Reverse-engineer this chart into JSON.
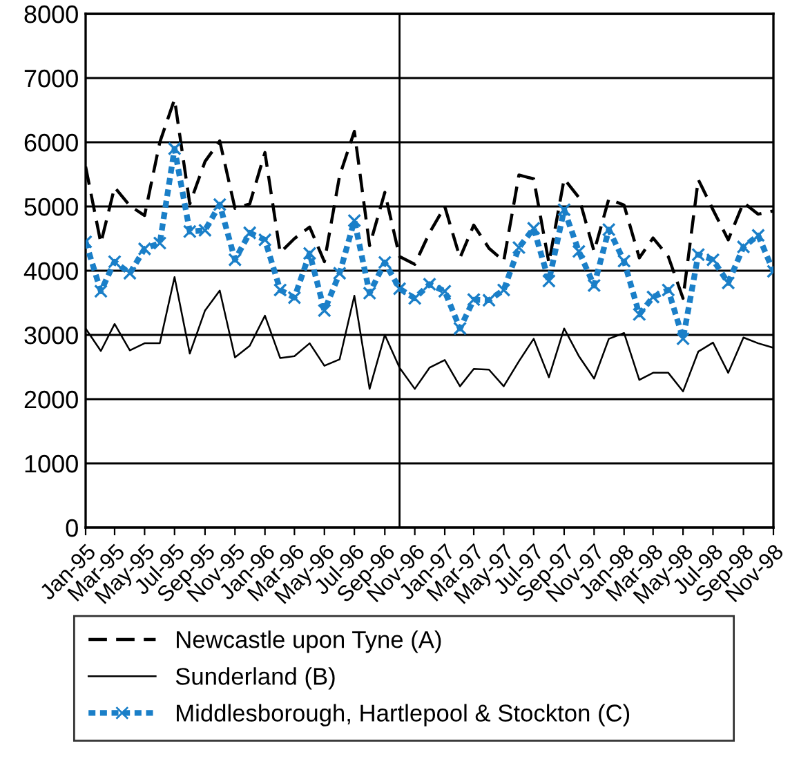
{
  "chart_data": {
    "type": "line",
    "x": [
      "1995-01",
      "1995-02",
      "1995-03",
      "1995-04",
      "1995-05",
      "1995-06",
      "1995-07",
      "1995-08",
      "1995-09",
      "1995-10",
      "1995-11",
      "1995-12",
      "1996-01",
      "1996-02",
      "1996-03",
      "1996-04",
      "1996-05",
      "1996-06",
      "1996-07",
      "1996-08",
      "1996-09",
      "1996-10",
      "1996-11",
      "1996-12",
      "1997-01",
      "1997-02",
      "1997-03",
      "1997-04",
      "1997-05",
      "1997-06",
      "1997-07",
      "1997-08",
      "1997-09",
      "1997-10",
      "1997-11",
      "1997-12",
      "1998-01",
      "1998-02",
      "1998-03",
      "1998-04",
      "1998-05",
      "1998-06",
      "1998-07",
      "1998-08",
      "1998-09",
      "1998-10",
      "1998-11"
    ],
    "series": [
      {
        "name": "Newcastle upon Tyne (A)",
        "color": "#000000",
        "line_style": "dashed",
        "marker": "none",
        "values": [
          5620,
          4430,
          5300,
          5010,
          4860,
          6000,
          6670,
          5040,
          5700,
          6020,
          4970,
          5040,
          5840,
          4280,
          4500,
          4680,
          4140,
          5480,
          6170,
          4390,
          5220,
          4220,
          4100,
          4590,
          5000,
          4200,
          4710,
          4350,
          4150,
          5490,
          5430,
          4120,
          5430,
          5140,
          4300,
          5120,
          5020,
          4200,
          4510,
          4220,
          3570,
          5420,
          4950,
          4480,
          5060,
          4880,
          4930
        ]
      },
      {
        "name": "Sunderland (B)",
        "color": "#000000",
        "line_style": "solid",
        "marker": "none",
        "values": [
          3100,
          2750,
          3170,
          2760,
          2870,
          2870,
          3900,
          2710,
          3380,
          3690,
          2650,
          2830,
          3300,
          2640,
          2670,
          2870,
          2520,
          2620,
          3610,
          2160,
          3000,
          2490,
          2160,
          2490,
          2610,
          2200,
          2470,
          2460,
          2200,
          2590,
          2940,
          2340,
          3100,
          2670,
          2320,
          2940,
          3030,
          2300,
          2410,
          2410,
          2120,
          2740,
          2880,
          2410,
          2960,
          2870,
          2800
        ]
      },
      {
        "name": "Middlesborough, Hartlepool & Stockton (C)",
        "color": "#1a7fc8",
        "line_style": "dotted",
        "marker": "cross",
        "values": [
          4450,
          3680,
          4140,
          3960,
          4340,
          4430,
          5900,
          4610,
          4630,
          5030,
          4170,
          4590,
          4480,
          3700,
          3580,
          4270,
          3380,
          3960,
          4780,
          3650,
          4130,
          3720,
          3570,
          3790,
          3680,
          3100,
          3550,
          3540,
          3700,
          4360,
          4660,
          3840,
          4950,
          4300,
          3770,
          4640,
          4150,
          3320,
          3590,
          3700,
          2940,
          4250,
          4170,
          3810,
          4370,
          4550,
          3990
        ]
      }
    ],
    "xlim": [
      "1995-01",
      "1998-11"
    ],
    "xticks": [
      {
        "value": "1995-01",
        "label": "Jan-95"
      },
      {
        "value": "1995-03",
        "label": "Mar-95"
      },
      {
        "value": "1995-05",
        "label": "May-95"
      },
      {
        "value": "1995-07",
        "label": "Jul-95"
      },
      {
        "value": "1995-09",
        "label": "Sep-95"
      },
      {
        "value": "1995-11",
        "label": "Nov-95"
      },
      {
        "value": "1996-01",
        "label": "Jan-96"
      },
      {
        "value": "1996-03",
        "label": "Mar-96"
      },
      {
        "value": "1996-05",
        "label": "May-96"
      },
      {
        "value": "1996-07",
        "label": "Jul-96"
      },
      {
        "value": "1996-09",
        "label": "Sep-96"
      },
      {
        "value": "1996-11",
        "label": "Nov-96"
      },
      {
        "value": "1997-01",
        "label": "Jan-97"
      },
      {
        "value": "1997-03",
        "label": "Mar-97"
      },
      {
        "value": "1997-05",
        "label": "May-97"
      },
      {
        "value": "1997-07",
        "label": "Jul-97"
      },
      {
        "value": "1997-09",
        "label": "Sep-97"
      },
      {
        "value": "1997-11",
        "label": "Nov-97"
      },
      {
        "value": "1998-01",
        "label": "Jan-98"
      },
      {
        "value": "1998-03",
        "label": "Mar-98"
      },
      {
        "value": "1998-05",
        "label": "May-98"
      },
      {
        "value": "1998-07",
        "label": "Jul-98"
      },
      {
        "value": "1998-09",
        "label": "Sep-98"
      },
      {
        "value": "1998-11",
        "label": "Nov-98"
      }
    ],
    "ylim": [
      0,
      8000
    ],
    "yticks": [
      0,
      1000,
      2000,
      3000,
      4000,
      5000,
      6000,
      7000,
      8000
    ],
    "grid": "y",
    "legend": "bottom",
    "ref_lines": [
      {
        "axis": "x",
        "value": "1996-10",
        "color": "#000000",
        "line_style": "solid"
      }
    ]
  }
}
